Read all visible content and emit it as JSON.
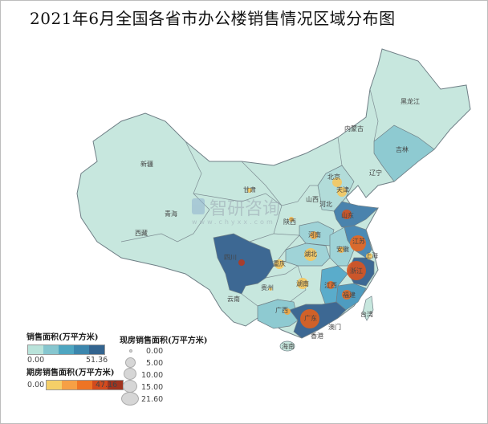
{
  "title": "2021年6月全国各省市办公楼销售情况区域分布图",
  "watermark": {
    "brand": "智研咨询",
    "url": "www.chyxx.com"
  },
  "provinces": [
    {
      "name": "黑龙江",
      "fill": "#c7e7de"
    },
    {
      "name": "内蒙古",
      "fill": "#c7e7de"
    },
    {
      "name": "吉林",
      "fill": "#8ecad1"
    },
    {
      "name": "辽宁",
      "fill": "#c7e7de"
    },
    {
      "name": "新疆",
      "fill": "#c7e7de"
    },
    {
      "name": "西藏",
      "fill": "#c7e7de"
    },
    {
      "name": "青海",
      "fill": "#c7e7de"
    },
    {
      "name": "甘肃",
      "fill": "#c7e7de"
    },
    {
      "name": "北京",
      "fill": "#c7e7de"
    },
    {
      "name": "天津",
      "fill": "#c7e7de"
    },
    {
      "name": "河北",
      "fill": "#b2dcd9"
    },
    {
      "name": "山西",
      "fill": "#c7e7de"
    },
    {
      "name": "陕西",
      "fill": "#c7e7de"
    },
    {
      "name": "山东",
      "fill": "#4a83ad"
    },
    {
      "name": "河南",
      "fill": "#9fd3d7"
    },
    {
      "name": "江苏",
      "fill": "#4b8ab5"
    },
    {
      "name": "安徽",
      "fill": "#9fd3d7"
    },
    {
      "name": "上海",
      "fill": "#4e9cc0"
    },
    {
      "name": "湖北",
      "fill": "#9fd3d7"
    },
    {
      "name": "四川",
      "fill": "#3d6893"
    },
    {
      "name": "重庆",
      "fill": "#c7e7de"
    },
    {
      "name": "浙江",
      "fill": "#3d6893"
    },
    {
      "name": "湖南",
      "fill": "#c7e7de"
    },
    {
      "name": "江西",
      "fill": "#5aaccb"
    },
    {
      "name": "贵州",
      "fill": "#c7e7de"
    },
    {
      "name": "云南",
      "fill": "#c7e7de"
    },
    {
      "name": "福建",
      "fill": "#4e9cc0"
    },
    {
      "name": "广西",
      "fill": "#8ecad1"
    },
    {
      "name": "广东",
      "fill": "#3d6893"
    },
    {
      "name": "台湾",
      "fill": "#c7e7de"
    },
    {
      "name": "澳门",
      "fill": "#c7e7de"
    },
    {
      "name": "香港",
      "fill": "#c7e7de"
    },
    {
      "name": "海南",
      "fill": "#c7e7de"
    }
  ],
  "legend_sales": {
    "title": "销售面积(万平方米)",
    "min": "0.00",
    "max": "51.36",
    "colors": [
      "#b9e3da",
      "#86c6cf",
      "#4ea6c1",
      "#3b86ad",
      "#33648f"
    ]
  },
  "legend_presale": {
    "title": "期房销售面积(万平方米)",
    "min": "0.00",
    "max": "47.16",
    "colors": [
      "#f5cf68",
      "#f6a045",
      "#ee7424",
      "#d24b1e",
      "#a0341f"
    ]
  },
  "legend_spot": {
    "title": "现房销售面积(万平方米)",
    "sizes": [
      "0.00",
      "5.00",
      "10.00",
      "15.00",
      "21.60"
    ]
  }
}
